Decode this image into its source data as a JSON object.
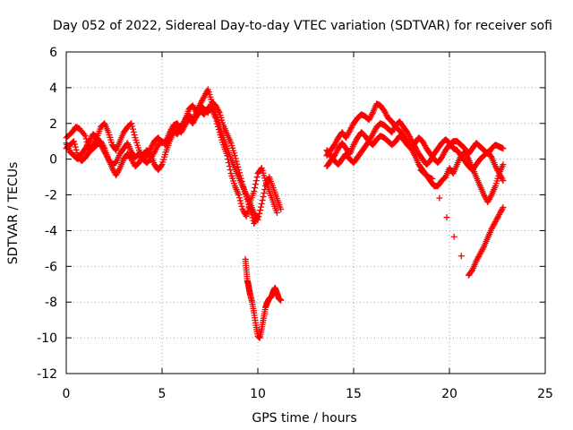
{
  "chart_data": {
    "type": "scatter",
    "title": "Day 052 of 2022, Sidereal Day-to-day VTEC variation (SDTVAR) for receiver sofi",
    "xlabel": "GPS time / hours",
    "ylabel": "SDTVAR / TECUs",
    "xlim": [
      0,
      25
    ],
    "ylim": [
      -12,
      6
    ],
    "xticks": [
      0,
      5,
      10,
      15,
      20,
      25
    ],
    "yticks": [
      -12,
      -10,
      -8,
      -6,
      -4,
      -2,
      0,
      2,
      4,
      6
    ],
    "marker": "+",
    "color": "#ff0000",
    "grid": true,
    "series": [
      {
        "name": "trace-1",
        "x": [
          0.0,
          0.3,
          0.5,
          0.7,
          1.0,
          1.2,
          1.4,
          1.6,
          1.8,
          2.0,
          2.2,
          2.4,
          2.6,
          2.8,
          3.0,
          3.2,
          3.4,
          3.6,
          3.8,
          4.0,
          4.2,
          4.4,
          4.6,
          4.8,
          5.0,
          5.2,
          5.4,
          5.6,
          5.8,
          6.0,
          6.2,
          6.4,
          6.6,
          6.8,
          7.0,
          7.2,
          7.4,
          7.6,
          7.8,
          8.0,
          8.2,
          8.4,
          8.6,
          8.8,
          9.0,
          9.2,
          9.4,
          9.6,
          9.8,
          10.0,
          10.2,
          10.4,
          10.6,
          10.8,
          11.0,
          11.2
        ],
        "y": [
          1.2,
          1.5,
          1.8,
          1.7,
          1.3,
          0.5,
          0.8,
          1.2,
          1.8,
          2.0,
          1.5,
          0.8,
          0.5,
          1.0,
          1.5,
          1.8,
          2.0,
          1.2,
          0.5,
          0.0,
          0.2,
          0.6,
          1.0,
          1.2,
          0.9,
          1.0,
          1.5,
          1.9,
          2.0,
          1.6,
          2.2,
          2.8,
          3.0,
          2.6,
          3.1,
          3.5,
          3.9,
          3.2,
          2.5,
          1.8,
          1.2,
          0.6,
          0.0,
          -0.5,
          -1.0,
          -1.5,
          -2.0,
          -2.5,
          -3.0,
          -3.4,
          -2.5,
          -1.5,
          -1.0,
          -1.6,
          -2.2,
          -2.8
        ]
      },
      {
        "name": "trace-2",
        "x": [
          0.0,
          0.2,
          0.4,
          0.6,
          0.8,
          1.0,
          1.2,
          1.4,
          1.6,
          1.8,
          2.0,
          2.2,
          2.4,
          2.6,
          2.8,
          3.0,
          3.2,
          3.4,
          3.6,
          3.8,
          4.0,
          4.2,
          4.4,
          4.6,
          4.8,
          5.0,
          5.2,
          5.4,
          5.6,
          5.8,
          6.0,
          6.2,
          6.4,
          6.6,
          6.8,
          7.0,
          7.2,
          7.4,
          7.6,
          7.8,
          8.0,
          8.2,
          8.4,
          8.6,
          8.8,
          9.0,
          9.2,
          9.4,
          9.6,
          9.8,
          10.0,
          10.2,
          10.4,
          10.6,
          10.8,
          11.0
        ],
        "y": [
          0.6,
          0.8,
          1.0,
          0.2,
          -0.1,
          0.1,
          0.4,
          0.6,
          0.8,
          1.0,
          0.6,
          0.0,
          -0.5,
          -0.9,
          -0.5,
          0.0,
          0.3,
          0.0,
          -0.4,
          -0.2,
          0.2,
          0.5,
          0.2,
          -0.3,
          -0.6,
          -0.3,
          0.4,
          1.0,
          1.5,
          1.8,
          1.5,
          1.9,
          2.3,
          2.0,
          2.4,
          2.7,
          2.5,
          2.9,
          2.8,
          2.3,
          1.5,
          0.8,
          0.2,
          -0.8,
          -1.5,
          -2.0,
          -2.8,
          -3.2,
          -2.4,
          -1.8,
          -0.8,
          -0.5,
          -1.2,
          -1.8,
          -2.4,
          -3.0
        ]
      },
      {
        "name": "trace-3",
        "x": [
          0.0,
          0.2,
          0.4,
          0.6,
          0.8,
          1.0,
          1.2,
          1.4,
          1.6,
          1.8,
          2.0,
          2.2,
          2.4,
          2.6,
          2.8,
          3.0,
          3.2,
          3.4,
          3.6,
          3.8,
          4.0,
          4.2,
          4.4,
          4.6,
          4.8,
          5.0,
          5.2,
          5.4,
          5.6,
          5.8,
          6.0,
          6.2,
          6.4,
          6.6,
          6.8,
          7.0,
          7.2,
          7.4,
          7.6,
          7.8,
          8.0,
          8.2,
          8.4,
          8.6,
          8.8,
          9.0,
          9.2,
          9.4,
          9.6,
          9.8,
          10.0
        ],
        "y": [
          0.9,
          0.4,
          0.2,
          0.0,
          0.3,
          0.6,
          1.0,
          1.4,
          1.2,
          0.8,
          0.4,
          0.0,
          -0.3,
          -0.2,
          0.3,
          0.6,
          0.9,
          0.4,
          0.1,
          0.3,
          0.0,
          -0.2,
          0.0,
          0.4,
          0.8,
          1.0,
          0.8,
          1.2,
          1.6,
          1.4,
          1.8,
          2.2,
          2.5,
          2.2,
          2.6,
          3.0,
          2.8,
          2.6,
          3.2,
          3.0,
          2.6,
          1.9,
          1.4,
          0.9,
          0.2,
          -0.6,
          -1.4,
          -2.1,
          -2.8,
          -3.6,
          -3.2
        ]
      },
      {
        "name": "dip-segment",
        "x": [
          9.35,
          9.4,
          9.45,
          9.5,
          9.55,
          9.6,
          9.7,
          9.8,
          9.9,
          10.0,
          10.1,
          10.2,
          10.3,
          10.4,
          10.5,
          10.6,
          10.7,
          10.8,
          10.9,
          11.0,
          11.1,
          11.2
        ],
        "y": [
          -5.6,
          -6.2,
          -6.8,
          -7.0,
          -7.3,
          -7.6,
          -8.0,
          -8.6,
          -9.3,
          -9.9,
          -10.0,
          -9.5,
          -8.9,
          -8.3,
          -8.0,
          -7.8,
          -7.7,
          -7.4,
          -7.2,
          -7.5,
          -7.8,
          -7.9
        ]
      },
      {
        "name": "trace-4",
        "x": [
          13.6,
          13.8,
          14.0,
          14.2,
          14.4,
          14.6,
          14.8,
          15.0,
          15.2,
          15.4,
          15.6,
          15.8,
          16.0,
          16.2,
          16.4,
          16.6,
          16.8,
          17.0,
          17.2,
          17.4,
          17.6,
          17.8,
          18.0,
          18.2,
          18.4,
          18.6,
          18.8,
          19.0,
          19.2,
          19.4,
          19.6,
          19.8,
          20.0,
          20.2,
          20.4,
          20.6,
          20.8,
          21.0,
          21.2,
          21.4,
          21.6,
          21.8,
          22.0,
          22.2,
          22.4,
          22.6,
          22.8
        ],
        "y": [
          0.2,
          0.5,
          0.8,
          1.2,
          1.5,
          1.2,
          1.6,
          2.0,
          2.3,
          2.5,
          2.4,
          2.2,
          2.6,
          3.1,
          3.0,
          2.7,
          2.3,
          2.1,
          1.8,
          1.6,
          1.3,
          1.0,
          0.6,
          0.2,
          -0.3,
          -0.6,
          -0.9,
          -1.2,
          -1.5,
          -1.5,
          -1.2,
          -1.0,
          -0.5,
          -0.8,
          -0.3,
          0.2,
          0.4,
          0.0,
          -0.5,
          -1.0,
          -1.5,
          -2.0,
          -2.4,
          -2.0,
          -1.5,
          -0.8,
          -0.3
        ]
      },
      {
        "name": "trace-5",
        "x": [
          13.6,
          13.8,
          14.0,
          14.2,
          14.4,
          14.6,
          14.8,
          15.0,
          15.2,
          15.4,
          15.6,
          15.8,
          16.0,
          16.2,
          16.4,
          16.6,
          16.8,
          17.0,
          17.2,
          17.4,
          17.6,
          17.8,
          18.0,
          18.2,
          18.4,
          18.6,
          18.8,
          19.0,
          19.2,
          19.4,
          19.6,
          19.8,
          20.0,
          20.2,
          20.4,
          20.6,
          20.8,
          21.0,
          21.2,
          21.4,
          21.6,
          21.8,
          22.0,
          22.2,
          22.4,
          22.6,
          22.8
        ],
        "y": [
          -0.4,
          -0.1,
          0.2,
          0.6,
          0.9,
          0.6,
          0.3,
          0.8,
          1.2,
          1.5,
          1.3,
          1.0,
          1.4,
          1.8,
          2.0,
          1.9,
          1.7,
          1.5,
          1.9,
          2.1,
          1.8,
          1.5,
          1.1,
          0.7,
          0.3,
          0.0,
          -0.3,
          -0.1,
          0.3,
          0.6,
          0.9,
          1.1,
          0.9,
          0.6,
          0.5,
          0.2,
          -0.1,
          -0.4,
          -0.6,
          -0.3,
          0.0,
          0.2,
          0.4,
          0.1,
          -0.4,
          -0.8,
          -1.2
        ]
      },
      {
        "name": "trace-6",
        "x": [
          13.6,
          13.8,
          14.0,
          14.2,
          14.4,
          14.6,
          14.8,
          15.0,
          15.2,
          15.4,
          15.6,
          15.8,
          16.0,
          16.2,
          16.4,
          16.6,
          16.8,
          17.0,
          17.2,
          17.4,
          17.6,
          17.8,
          18.0,
          18.2,
          18.4,
          18.6,
          18.8,
          19.0,
          19.2,
          19.4,
          19.6,
          19.8,
          20.0,
          20.2,
          20.4,
          20.6,
          20.8,
          21.0,
          21.2,
          21.4,
          21.6,
          21.8,
          22.0,
          22.2,
          22.4,
          22.6,
          22.8
        ],
        "y": [
          0.5,
          0.2,
          -0.1,
          -0.3,
          0.0,
          0.3,
          0.0,
          -0.2,
          0.1,
          0.4,
          0.7,
          1.0,
          0.8,
          1.1,
          1.3,
          1.2,
          1.0,
          0.8,
          1.0,
          1.3,
          1.1,
          0.8,
          0.6,
          0.9,
          1.2,
          1.0,
          0.6,
          0.3,
          0.0,
          -0.2,
          0.1,
          0.5,
          0.8,
          1.0,
          1.0,
          0.8,
          0.6,
          0.3,
          0.6,
          0.9,
          0.7,
          0.5,
          0.3,
          0.6,
          0.8,
          0.7,
          0.6
        ]
      },
      {
        "name": "ramp-segment",
        "x": [
          18.5,
          18.7,
          18.9,
          19.1,
          21.0,
          21.2,
          21.4,
          21.6,
          21.8,
          22.0,
          22.2,
          22.4,
          22.6,
          22.8
        ],
        "y": [
          -0.6,
          -0.8,
          -1.0,
          -1.1,
          -6.5,
          -6.2,
          -5.7,
          -5.3,
          -4.9,
          -4.4,
          -3.9,
          -3.5,
          -3.1,
          -2.7
        ]
      }
    ]
  }
}
